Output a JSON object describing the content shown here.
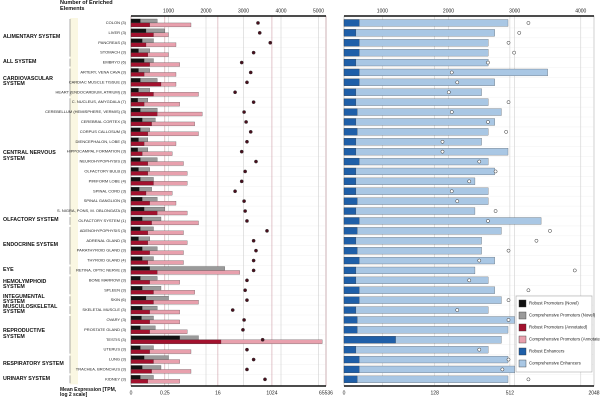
{
  "chart_data": {
    "type": "bar",
    "xlabel_top": "Number of Enriched Elements",
    "xlabel_bottom": "Mean Expression [TPM, log 2 scale]",
    "legend": "lower right",
    "groups": [
      {
        "label": "ALIMENTARY SYSTEM",
        "categories": [
          "COLON (3)",
          "LIVER (3)",
          "PANCREAS (3)",
          "STOMACH (3)"
        ]
      },
      {
        "label": "ALL SYSTEM",
        "categories": [
          "EMBRYO (6)"
        ]
      },
      {
        "label": "CARDIOVASCULAR SYSTEM",
        "categories": [
          "ARTERY, VENA CAVA (3)",
          "CARDIAC MUSCLE TISSUE (3)",
          "HEART (ENDOCARDIUM, ATRIUM) (3)"
        ]
      },
      {
        "label": "CENTRAL NERVOUS SYSTEM",
        "categories": [
          "C. NUCLEUS, AMYGDALA (7)",
          "CEREBELLUM (HEMISPHERE, VERMIS) (3)",
          "CEREBRAL CORTEX (3)",
          "CORPUS CALLOSUM (3)",
          "DIENCEPHALON, LOBE (3)",
          "HIPPOCAMPAL FORMATION (3)",
          "NEUROHYPOPHYSIS (3)",
          "OLFACTORY BULB (3)",
          "PIRIFORM LOBE (4)",
          "SPINAL CORD (3)",
          "SPINAL GANGLION (3)",
          "S. NIGRA, PONS, M. OBLONGATA (3)"
        ]
      },
      {
        "label": "OLFACTORY SYSTEM",
        "categories": [
          "OLFACTORY SYSTEM (1)"
        ]
      },
      {
        "label": "ENDOCRINE SYSTEM",
        "categories": [
          "ADENOHYPOPHYSIS (3)",
          "ADRENAL GLAND (3)",
          "PARATHYROID GLAND (3)",
          "THYROID GLAND (4)"
        ]
      },
      {
        "label": "EYE",
        "categories": [
          "RETINA, OPTIC NERVE (3)"
        ]
      },
      {
        "label": "HEMOLYMPHOID SYSTEM",
        "categories": [
          "BONE MARROW (3)",
          "SPLEEN (3)"
        ]
      },
      {
        "label": "INTEGUMENTAL SYSTEM",
        "categories": [
          "SKIN (6)"
        ]
      },
      {
        "label": "MUSCULOSKELETAL SYSTEM",
        "categories": [
          "SKELETAL MUSCLE (3)"
        ]
      },
      {
        "label": "REPRODUCTIVE SYSTEM",
        "categories": [
          "OVARY (3)",
          "PROSTATE GLAND (3)",
          "TESTIS (3)",
          "UTERUS (3)"
        ]
      },
      {
        "label": "RESPIRATORY SYSTEM",
        "categories": [
          "LUNG (3)",
          "TRACHEA, BRONCHUS (3)"
        ]
      },
      {
        "label": "URINARY SYSTEM",
        "categories": [
          "KIDNEY (3)"
        ]
      }
    ],
    "panels": [
      {
        "xlim": [
          0,
          5200
        ],
        "xticks": [
          1000,
          2000,
          3000,
          4000,
          5000
        ],
        "x2lim": [
          0,
          65536
        ],
        "x2ticks": [
          0,
          0.25,
          16,
          1024,
          65536
        ],
        "x2log": true,
        "series": [
          {
            "name": "Robust Promoters (Novel)",
            "color": "#111111",
            "values": [
              250,
              400,
              300,
              200,
              350,
              200,
              250,
              200,
              180,
              250,
              300,
              250,
              200,
              180,
              250,
              200,
              250,
              220,
              300,
              350,
              300,
              250,
              200,
              300,
              300,
              500,
              250,
              300,
              400,
              300,
              280,
              250,
              1300,
              250,
              350,
              300,
              250
            ]
          },
          {
            "name": "Comprehensive Promoters (Novel)",
            "color": "#9a9a9a",
            "values": [
              700,
              900,
              600,
              500,
              600,
              500,
              700,
              500,
              450,
              700,
              650,
              500,
              450,
              450,
              700,
              500,
              600,
              550,
              700,
              900,
              800,
              600,
              500,
              700,
              600,
              2500,
              700,
              800,
              1000,
              700,
              600,
              650,
              1800,
              600,
              1000,
              800,
              600
            ]
          },
          {
            "name": "Robust Promoters (Annotated)",
            "color": "#a3112e",
            "values": [
              500,
              600,
              400,
              450,
              500,
              350,
              800,
              600,
              350,
              700,
              550,
              450,
              350,
              300,
              450,
              450,
              600,
              400,
              500,
              700,
              550,
              450,
              450,
              500,
              450,
              700,
              500,
              600,
              600,
              500,
              500,
              500,
              2400,
              500,
              600,
              550,
              450
            ]
          },
          {
            "name": "Comprehensive Promoters (Annotated)",
            "color": "#e8a0ad",
            "values": [
              1600,
              1000,
              1200,
              1000,
              1300,
              1200,
              1200,
              1800,
              1300,
              1900,
              1700,
              1800,
              1200,
              1100,
              1400,
              1500,
              1500,
              1100,
              1200,
              1500,
              1800,
              1400,
              1500,
              1400,
              1400,
              2900,
              1300,
              1700,
              1800,
              1300,
              1300,
              1500,
              5100,
              1600,
              1300,
              1600,
              1300
            ]
          }
        ],
        "expression": {
          "color": "#4a0d1c",
          "values": [
            350,
            400,
            900,
            250,
            100,
            200,
            150,
            60,
            250,
            120,
            140,
            200,
            150,
            100,
            300,
            130,
            100,
            60,
            120,
            130,
            150,
            700,
            250,
            300,
            250,
            250,
            150,
            130,
            150,
            50,
            120,
            110,
            500,
            150,
            250,
            150,
            600
          ]
        }
      },
      {
        "xlim": [
          420,
          4200
        ],
        "xticks": [
          1000,
          2000,
          3000,
          4000
        ],
        "x2lim": [
          0,
          2048
        ],
        "x2ticks": [
          0,
          128,
          512,
          2048
        ],
        "x2log": true,
        "series": [
          {
            "name": "Robust Enhancers",
            "color": "#1f5fa8",
            "values": [
              650,
              600,
              650,
              650,
              600,
              650,
              650,
              600,
              600,
              620,
              600,
              620,
              600,
              600,
              650,
              600,
              600,
              600,
              620,
              600,
              650,
              620,
              600,
              620,
              650,
              600,
              600,
              650,
              650,
              600,
              620,
              620,
              1200,
              600,
              650,
              650,
              620
            ]
          },
          {
            "name": "Comprehensive Enhancers",
            "color": "#a9c7e4",
            "values": [
              2900,
              2700,
              2600,
              2600,
              2600,
              3500,
              2700,
              2500,
              2600,
              2800,
              2700,
              2600,
              2500,
              2900,
              2600,
              2700,
              2400,
              2600,
              2600,
              2400,
              3400,
              2800,
              2500,
              2500,
              2700,
              2400,
              2600,
              2700,
              2800,
              2600,
              3000,
              2900,
              2800,
              2600,
              2900,
              3000,
              2900
            ]
          }
        ],
        "expression": {
          "color": "#ffffff",
          "values": [
            700,
            600,
            500,
            550,
            350,
            180,
            200,
            170,
            500,
            180,
            350,
            480,
            150,
            150,
            300,
            400,
            250,
            180,
            200,
            400,
            350,
            1000,
            800,
            500,
            300,
            1500,
            250,
            700,
            500,
            200,
            500,
            600,
            900,
            300,
            500,
            450,
            700
          ]
        }
      }
    ]
  }
}
